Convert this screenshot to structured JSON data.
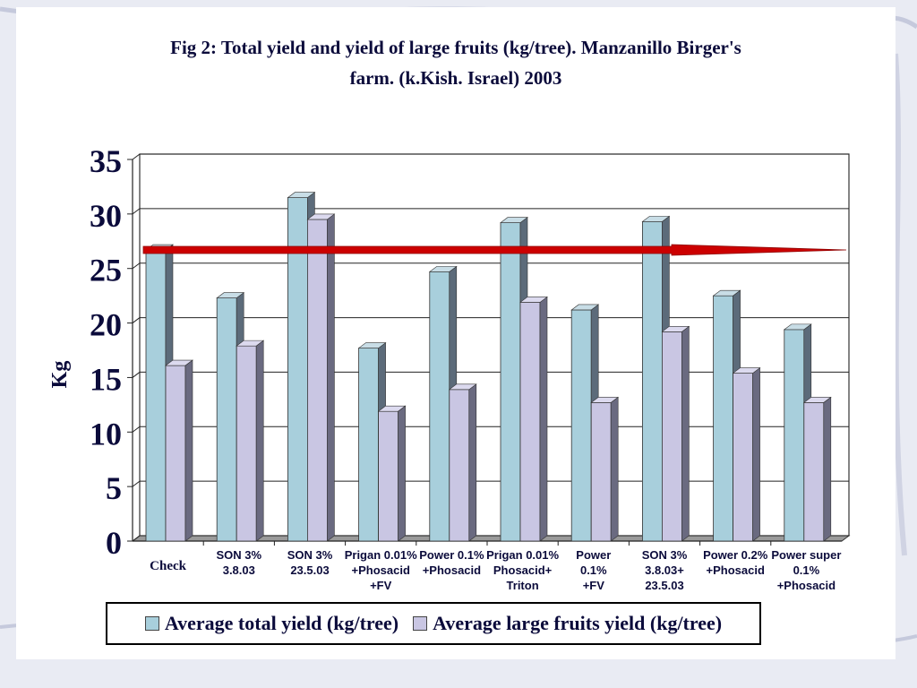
{
  "chart_data": {
    "type": "bar",
    "title_line1": "Fig 2: Total yield and yield of large fruits (kg/tree).  Manzanillo Birger's",
    "title_line2": "farm. (k.Kish. Israel)  2003",
    "ylabel": "Kg",
    "ylim": [
      0,
      35
    ],
    "yticks": [
      "0",
      "5",
      "10",
      "15",
      "20",
      "25",
      "30",
      "35"
    ],
    "categories": [
      [
        "Check"
      ],
      [
        "SON 3%",
        "3.8.03"
      ],
      [
        "SON 3%",
        "23.5.03"
      ],
      [
        "Prigan 0.01%",
        "+Phosacid",
        "+FV"
      ],
      [
        "Power 0.1%",
        "+Phosacid"
      ],
      [
        "Prigan 0.01%",
        "Phosacid+",
        "Triton"
      ],
      [
        "Power",
        "0.1%",
        "+FV"
      ],
      [
        "SON 3%",
        "3.8.03+",
        "23.5.03"
      ],
      [
        "Power 0.2%",
        "+Phosacid"
      ],
      [
        "Power super",
        "0.1%",
        "+Phosacid"
      ]
    ],
    "series": [
      {
        "name": "Average total yield (kg/tree)",
        "color": "#a8cfdc",
        "values": [
          26.7,
          22.3,
          31.5,
          17.7,
          24.7,
          29.2,
          21.2,
          29.3,
          22.5,
          19.4
        ]
      },
      {
        "name": "Average large fruits yield (kg/tree)",
        "color": "#c9c6e3",
        "values": [
          16.1,
          17.9,
          29.5,
          11.9,
          13.9,
          21.9,
          12.7,
          19.2,
          15.4,
          12.7
        ]
      }
    ],
    "reference_line": {
      "value": 26.7,
      "color": "#cc0000"
    },
    "legend_position": "bottom"
  },
  "colors": {
    "side_front": "#5c6b7a",
    "top_front": "#c8dde6",
    "side_back": "#6a6a80",
    "top_back": "#dcdaef",
    "wall": "#ffffff",
    "floor": "#9a9a9a"
  }
}
